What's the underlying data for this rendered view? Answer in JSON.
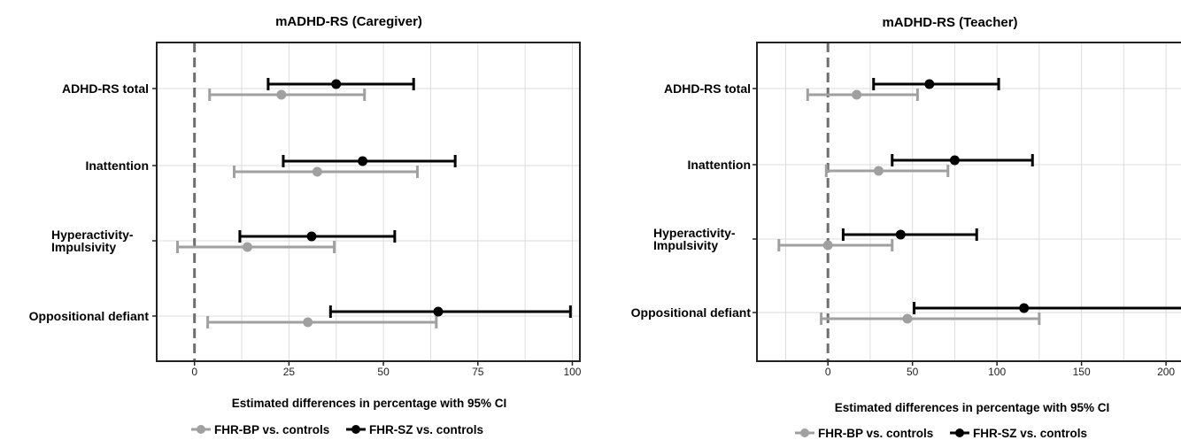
{
  "chart_data": [
    {
      "type": "forest",
      "title": "mADHD-RS (Caregiver)",
      "xlabel": "Estimated differences in percentage with 95% CI",
      "xlim": [
        -10,
        102
      ],
      "xticks": [
        0,
        25,
        50,
        75,
        100
      ],
      "grid": true,
      "reference_line": 0,
      "legend_position": "bottom",
      "categories": [
        "ADHD-RS total",
        "Inattention",
        "Hyperactivity-\nImpulsivity",
        "Oppositional defiant"
      ],
      "series": [
        {
          "name": "FHR-BP vs. controls",
          "color": "#a0a0a0",
          "estimate": [
            23,
            32.5,
            14,
            30
          ],
          "lower": [
            4,
            10.5,
            -4.5,
            3.5
          ],
          "upper": [
            45,
            59,
            37,
            64
          ]
        },
        {
          "name": "FHR-SZ vs. controls",
          "color": "#000000",
          "estimate": [
            37.5,
            44.5,
            31,
            64.5
          ],
          "lower": [
            19.5,
            23.5,
            12,
            36
          ],
          "upper": [
            58,
            69,
            53,
            99.5
          ]
        }
      ]
    },
    {
      "type": "forest",
      "title": "mADHD-RS (Teacher)",
      "xlabel": "Estimated differences in percentage with 95% CI",
      "xlim": [
        -42,
        212
      ],
      "xticks": [
        0,
        50,
        100,
        150,
        200
      ],
      "grid": true,
      "reference_line": 0,
      "legend_position": "bottom",
      "categories": [
        "ADHD-RS total",
        "Inattention",
        "Hyperactivity-\nImpulsivity",
        "Oppositional defiant"
      ],
      "series": [
        {
          "name": "FHR-BP vs. controls",
          "color": "#a0a0a0",
          "estimate": [
            17,
            30,
            0,
            47
          ],
          "lower": [
            -12,
            -1,
            -29,
            -4
          ],
          "upper": [
            53,
            71,
            38,
            125
          ]
        },
        {
          "name": "FHR-SZ vs. controls",
          "color": "#000000",
          "estimate": [
            60,
            75,
            43,
            116
          ],
          "lower": [
            27,
            38,
            9,
            51
          ],
          "upper": [
            101,
            121,
            88,
            210
          ]
        }
      ]
    }
  ]
}
